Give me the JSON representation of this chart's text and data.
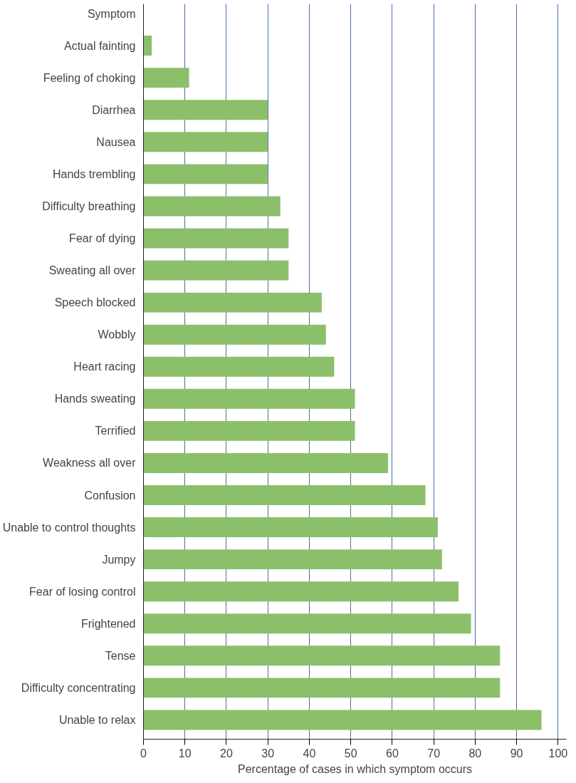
{
  "chart_data": {
    "type": "bar",
    "orientation": "horizontal",
    "ylabel": "Symptom",
    "xlabel": "Percentage of cases in which symptom occurs",
    "categories": [
      "Actual fainting",
      "Feeling of choking",
      "Diarrhea",
      "Nausea",
      "Hands trembling",
      "Difficulty breathing",
      "Fear of dying",
      "Sweating all over",
      "Speech blocked",
      "Wobbly",
      "Heart racing",
      "Hands sweating",
      "Terrified",
      "Weakness all over",
      "Confusion",
      "Unable to control thoughts",
      "Jumpy",
      "Fear of losing control",
      "Frightened",
      "Tense",
      "Difficulty concentrating",
      "Unable to relax"
    ],
    "values": [
      2,
      11,
      30,
      30,
      30,
      33,
      35,
      35,
      43,
      44,
      46,
      51,
      51,
      59,
      68,
      71,
      72,
      76,
      79,
      86,
      86,
      96
    ],
    "color": "#8cbf6a",
    "xlim": [
      0,
      102
    ],
    "xticks": [
      0,
      10,
      20,
      30,
      40,
      50,
      60,
      70,
      80,
      90,
      100
    ],
    "grid": "x"
  }
}
